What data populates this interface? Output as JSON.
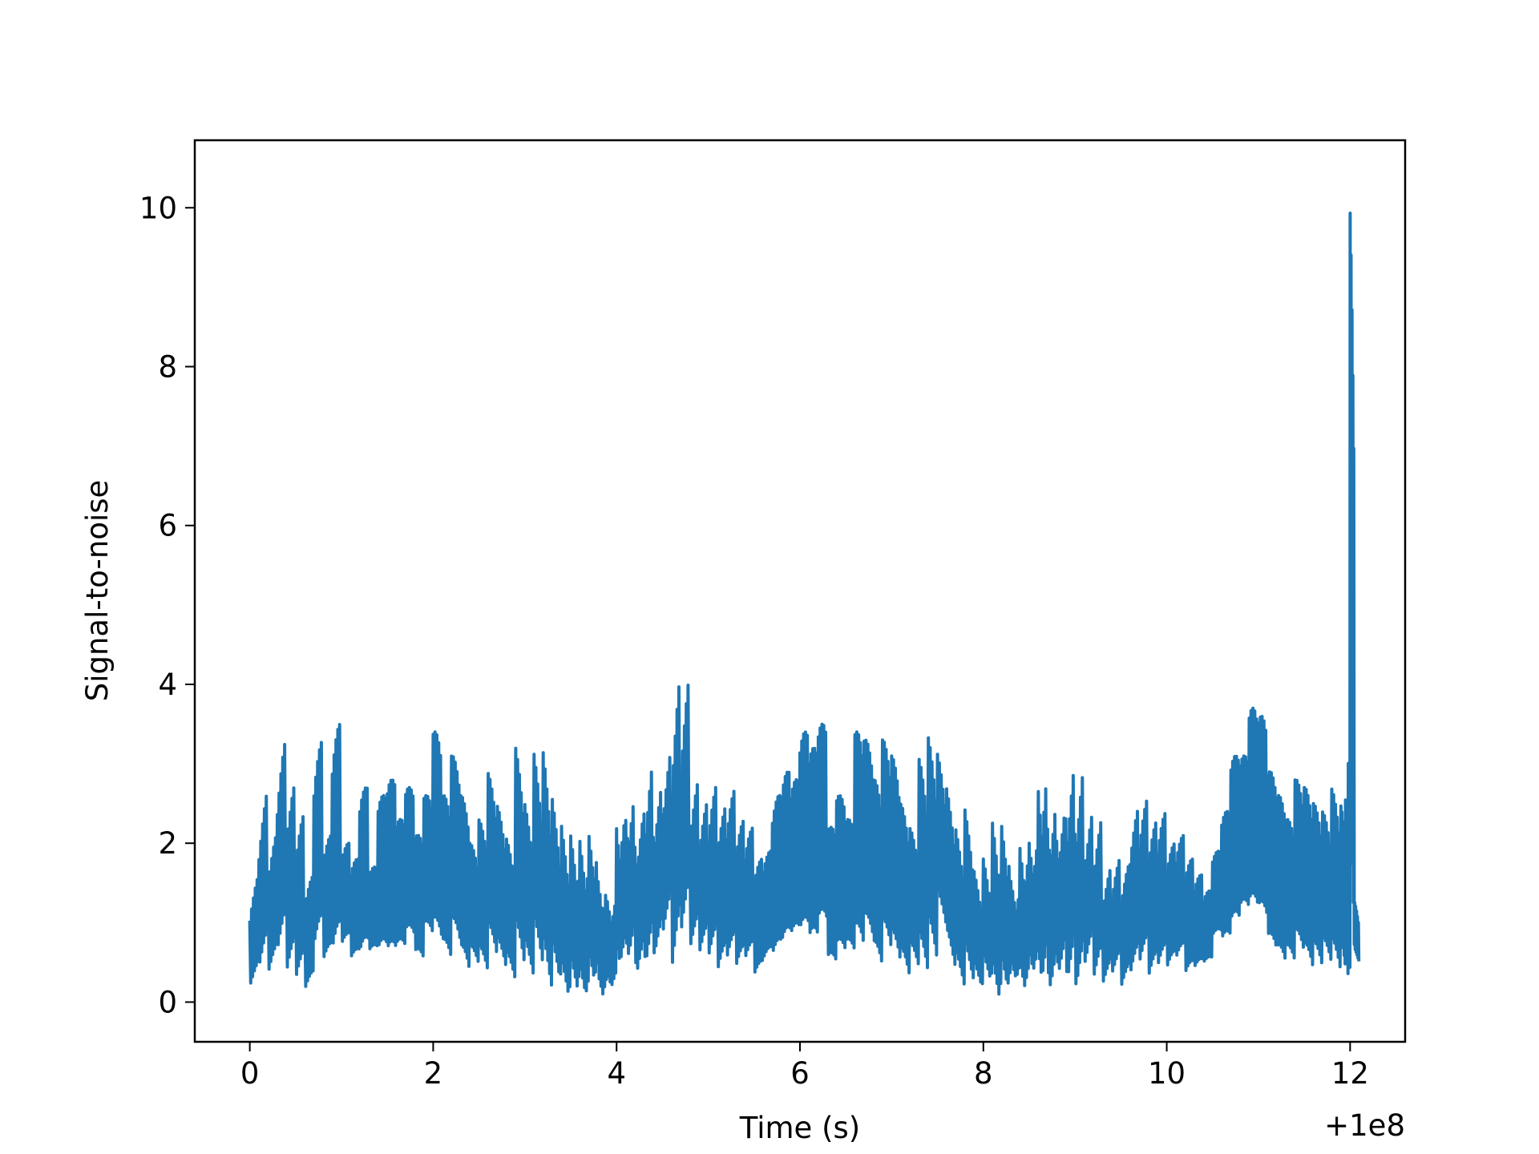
{
  "chart_data": {
    "type": "line",
    "title": "",
    "xlabel": "Time (s)",
    "ylabel": "Signal-to-noise",
    "x_offset_label": "+1e8",
    "xlim": [
      -0.6,
      12.6
    ],
    "ylim": [
      -0.5,
      10.85
    ],
    "xticks": [
      0,
      2,
      4,
      6,
      8,
      10,
      12
    ],
    "xtick_labels": [
      "0",
      "2",
      "4",
      "6",
      "8",
      "10",
      "12"
    ],
    "yticks": [
      0,
      2,
      4,
      6,
      8,
      10
    ],
    "ytick_labels": [
      "0",
      "2",
      "4",
      "6",
      "8",
      "10"
    ],
    "grid": false,
    "series": [
      {
        "color": "#1f77b4",
        "x": [
          0.0,
          0.1,
          0.2,
          0.3,
          0.4,
          0.5,
          0.6,
          0.7,
          0.8,
          0.9,
          1.0,
          1.1,
          1.2,
          1.3,
          1.4,
          1.5,
          1.6,
          1.7,
          1.8,
          1.9,
          2.0,
          2.1,
          2.2,
          2.3,
          2.4,
          2.5,
          2.6,
          2.7,
          2.8,
          2.9,
          3.0,
          3.1,
          3.2,
          3.3,
          3.4,
          3.5,
          3.6,
          3.7,
          3.8,
          3.9,
          4.0,
          4.1,
          4.2,
          4.3,
          4.4,
          4.5,
          4.6,
          4.7,
          4.8,
          4.9,
          5.0,
          5.1,
          5.2,
          5.3,
          5.4,
          5.5,
          5.6,
          5.7,
          5.8,
          5.9,
          6.0,
          6.1,
          6.2,
          6.3,
          6.4,
          6.5,
          6.6,
          6.7,
          6.8,
          6.9,
          7.0,
          7.1,
          7.2,
          7.3,
          7.4,
          7.5,
          7.6,
          7.7,
          7.8,
          7.9,
          8.0,
          8.1,
          8.2,
          8.3,
          8.4,
          8.5,
          8.6,
          8.7,
          8.8,
          8.9,
          9.0,
          9.1,
          9.2,
          9.3,
          9.4,
          9.5,
          9.6,
          9.7,
          9.8,
          9.9,
          10.0,
          10.1,
          10.2,
          10.3,
          10.4,
          10.5,
          10.6,
          10.7,
          10.8,
          10.9,
          11.0,
          11.1,
          11.2,
          11.3,
          11.4,
          11.5,
          11.6,
          11.7,
          11.8,
          11.9,
          11.95,
          11.98,
          12.0,
          12.05
        ],
        "y_high": [
          1.7,
          2.8,
          2.2,
          3.4,
          2.8,
          2.4,
          1.6,
          3.3,
          2.1,
          3.5,
          2.0,
          1.8,
          2.7,
          1.7,
          2.6,
          2.8,
          2.3,
          2.7,
          2.1,
          2.6,
          3.4,
          2.6,
          3.1,
          2.6,
          2.0,
          2.3,
          2.9,
          2.5,
          2.1,
          3.3,
          2.6,
          3.3,
          3.4,
          2.8,
          2.5,
          2.4,
          2.4,
          2.5,
          1.9,
          1.6,
          2.8,
          3.0,
          2.7,
          3.4,
          3.0,
          3.4,
          4.4,
          4.3,
          2.9,
          2.6,
          2.8,
          2.5,
          2.7,
          2.3,
          2.2,
          1.8,
          1.9,
          2.6,
          2.9,
          2.8,
          3.4,
          3.2,
          3.5,
          2.2,
          2.6,
          2.3,
          3.4,
          3.3,
          2.8,
          3.3,
          3.1,
          2.5,
          2.2,
          3.1,
          3.4,
          3.2,
          2.8,
          2.3,
          2.6,
          1.8,
          2.0,
          2.6,
          2.6,
          1.8,
          2.4,
          2.5,
          3.5,
          3.0,
          2.8,
          3.4,
          3.3,
          2.6,
          2.5,
          1.8,
          1.9,
          1.8,
          2.5,
          2.6,
          2.3,
          2.4,
          2.0,
          2.1,
          1.8,
          1.6,
          1.4,
          1.9,
          2.4,
          3.1,
          3.1,
          3.7,
          3.6,
          2.9,
          2.6,
          2.3,
          2.8,
          2.7,
          2.5,
          2.4,
          2.7,
          2.5,
          2.6,
          3.1,
          10.4,
          1.3
        ],
        "y_low": [
          0.2,
          0.4,
          0.3,
          0.5,
          0.2,
          0.1,
          0.0,
          0.4,
          0.3,
          0.2,
          0.5,
          0.3,
          0.2,
          0.4,
          0.2,
          0.1,
          0.3,
          0.4,
          0.2,
          0.5,
          0.3,
          0.2,
          0.4,
          0.1,
          0.3,
          0.2,
          0.4,
          0.3,
          0.2,
          0.4,
          0.3,
          0.5,
          0.2,
          0.3,
          0.1,
          0.2,
          0.1,
          0.3,
          0.1,
          0.2,
          0.5,
          0.6,
          0.4,
          0.5,
          0.6,
          0.9,
          0.4,
          0.8,
          0.6,
          0.5,
          0.4,
          0.2,
          0.3,
          0.2,
          0.3,
          0.1,
          0.3,
          0.2,
          0.3,
          0.4,
          0.3,
          0.2,
          0.4,
          0.1,
          0.2,
          0.3,
          0.2,
          0.4,
          0.1,
          0.3,
          0.2,
          0.1,
          0.3,
          0.2,
          0.4,
          0.9,
          0.4,
          0.2,
          0.3,
          0.2,
          0.3,
          0.1,
          0.2,
          0.3,
          0.2,
          0.4,
          0.3,
          0.2,
          0.4,
          0.3,
          0.2,
          0.5,
          0.3,
          0.2,
          0.3,
          0.1,
          0.2,
          0.3,
          0.1,
          0.2,
          0.2,
          0.3,
          0.1,
          0.2,
          0.3,
          0.6,
          0.4,
          0.5,
          0.7,
          0.6,
          0.5,
          0.2,
          0.1,
          0.2,
          0.3,
          0.1,
          0.2,
          0.3,
          0.2,
          0.3,
          0.2,
          0.3,
          0.4,
          0.5
        ]
      }
    ]
  }
}
